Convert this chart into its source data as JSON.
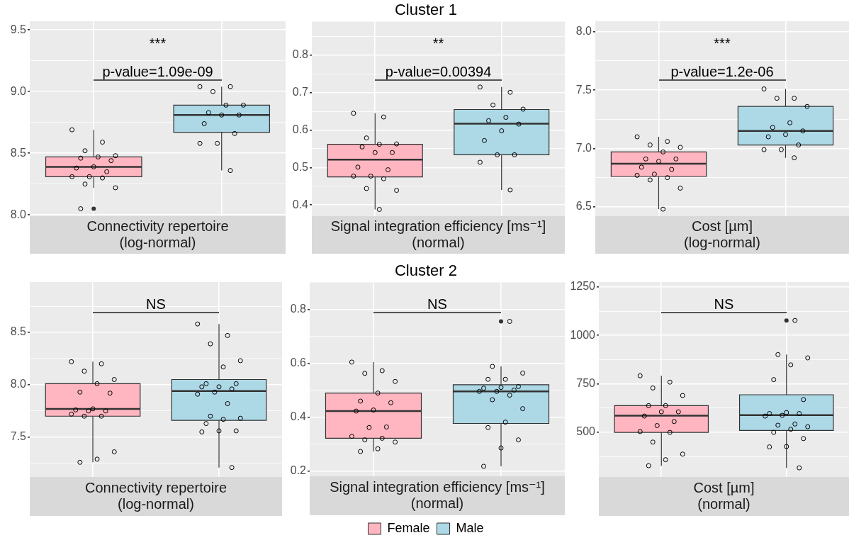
{
  "chart_data": [
    {
      "type": "box",
      "categories": [
        null,
        null
      ],
      "tick_labels": "y",
      "xlabel": "Connectivity repertoire\n(log-normal)",
      "ylim": [
        7.99,
        9.57
      ],
      "yticks": [
        {
          "value": 8,
          "label": "8.0"
        },
        {
          "value": 8.25,
          "label": null
        },
        8.5,
        {
          "value": 8.75,
          "label": null
        },
        {
          "value": 9,
          "label": "9.0"
        },
        {
          "value": 9.25,
          "label": null
        },
        9.5
      ],
      "grid": true,
      "marker": "circle",
      "annotations": [
        "***",
        "p-value=1.09e-09"
      ],
      "series": [
        {
          "color": "#ffb6c1",
          "boxes": [
            {
              "low": 8.22,
              "q1": 8.31,
              "median": 8.39,
              "q3": 8.47,
              "high": 8.69,
              "outliers": [
                8.69,
                8.59,
                8.52,
                8.48,
                8.47,
                8.46,
                8.44,
                8.39,
                8.38,
                8.35,
                8.31,
                8.31,
                8.3,
                8.25,
                8.22,
                8.05,
                8.05
              ]
            },
            null
          ]
        },
        {
          "color": "#add8e6",
          "boxes": [
            null,
            {
              "low": 8.36,
              "q1": 8.67,
              "median": 8.81,
              "q3": 8.89,
              "high": 9.04,
              "outliers": [
                9.04,
                9.04,
                9.0,
                8.89,
                8.89,
                8.83,
                8.81,
                8.81,
                8.74,
                8.66,
                8.58,
                8.58,
                8.36
              ]
            }
          ]
        }
      ]
    },
    {
      "type": "box",
      "title": "Cluster 1",
      "categories": [
        null,
        null
      ],
      "tick_labels": "y",
      "xlabel": "Signal integration efficiency [ms⁻¹]\n(normal)",
      "ylim": [
        0.37,
        0.89
      ],
      "yticks": [
        0.4,
        {
          "value": 0.45,
          "label": null
        },
        0.5,
        {
          "value": 0.55,
          "label": null
        },
        0.6,
        {
          "value": 0.65,
          "label": null
        },
        0.7,
        {
          "value": 0.75,
          "label": null
        },
        0.8,
        {
          "value": 0.85,
          "label": null
        }
      ],
      "grid": true,
      "marker": "circle",
      "annotations": [
        "**",
        "p-value=0.00394"
      ],
      "series": [
        {
          "color": "#ffb6c1",
          "boxes": [
            {
              "low": 0.388,
              "q1": 0.475,
              "median": 0.521,
              "q3": 0.562,
              "high": 0.645,
              "outliers": [
                0.645,
                0.635,
                0.579,
                0.563,
                0.562,
                0.555,
                0.54,
                0.54,
                0.501,
                0.494,
                0.477,
                0.477,
                0.47,
                0.444,
                0.439,
                0.388
              ]
            },
            null
          ]
        },
        {
          "color": "#add8e6",
          "boxes": [
            null,
            {
              "low": 0.44,
              "q1": 0.534,
              "median": 0.617,
              "q3": 0.655,
              "high": 0.715,
              "outliers": [
                0.715,
                0.701,
                0.667,
                0.656,
                0.634,
                0.625,
                0.616,
                0.598,
                0.572,
                0.534,
                0.534,
                0.514,
                0.44
              ]
            }
          ]
        }
      ]
    },
    {
      "type": "box",
      "categories": [
        null,
        null
      ],
      "tick_labels": "y",
      "xlabel": "Cost [µm]\n(log-normal)",
      "ylim": [
        6.42,
        8.09
      ],
      "yticks": [
        6.5,
        {
          "value": 6.75,
          "label": null
        },
        {
          "value": 7,
          "label": "7.0"
        },
        {
          "value": 7.25,
          "label": null
        },
        7.5,
        {
          "value": 7.75,
          "label": null
        },
        {
          "value": 8,
          "label": "8.0"
        }
      ],
      "grid": true,
      "marker": "circle",
      "annotations": [
        "***",
        "p-value=1.2e-06"
      ],
      "series": [
        {
          "color": "#ffb6c1",
          "boxes": [
            {
              "low": 6.48,
              "q1": 6.76,
              "median": 6.87,
              "q3": 6.97,
              "high": 7.1,
              "outliers": [
                7.1,
                7.06,
                7.03,
                7.01,
                6.97,
                6.91,
                6.91,
                6.89,
                6.84,
                6.82,
                6.78,
                6.77,
                6.75,
                6.73,
                6.66,
                6.48
              ]
            },
            null
          ]
        },
        {
          "color": "#add8e6",
          "boxes": [
            null,
            {
              "low": 6.92,
              "q1": 7.03,
              "median": 7.15,
              "q3": 7.36,
              "high": 7.51,
              "outliers": [
                7.51,
                7.43,
                7.43,
                7.36,
                7.22,
                7.18,
                7.15,
                7.12,
                7.1,
                7.03,
                6.99,
                6.99,
                6.92
              ]
            }
          ]
        }
      ]
    },
    {
      "type": "box",
      "categories": [
        null,
        null
      ],
      "tick_labels": "y",
      "xlabel": "Connectivity repertoire\n(log-normal)",
      "ylim": [
        7.12,
        8.98
      ],
      "yticks": [
        {
          "value": 7.25,
          "label": null
        },
        7.5,
        {
          "value": 7.75,
          "label": null
        },
        {
          "value": 8,
          "label": "8.0"
        },
        {
          "value": 8.25,
          "label": null
        },
        8.5,
        {
          "value": 8.75,
          "label": null
        }
      ],
      "grid": true,
      "marker": "circle",
      "annotations": [
        "NS"
      ],
      "series": [
        {
          "color": "#ffb6c1",
          "boxes": [
            {
              "low": 7.26,
              "q1": 7.7,
              "median": 7.77,
              "q3": 8.01,
              "high": 8.22,
              "outliers": [
                8.22,
                8.2,
                8.13,
                8.05,
                8.01,
                7.93,
                7.92,
                7.77,
                7.76,
                7.75,
                7.75,
                7.72,
                7.7,
                7.7,
                7.36,
                7.29,
                7.26
              ]
            },
            null
          ]
        },
        {
          "color": "#add8e6",
          "boxes": [
            null,
            {
              "low": 7.21,
              "q1": 7.66,
              "median": 7.94,
              "q3": 8.05,
              "high": 8.58,
              "outliers": [
                8.58,
                8.47,
                8.39,
                8.23,
                8.17,
                8.01,
                8.01,
                7.98,
                7.98,
                7.96,
                7.93,
                7.91,
                7.82,
                7.7,
                7.68,
                7.67,
                7.63,
                7.56,
                7.56,
                7.55,
                7.21
              ]
            }
          ]
        }
      ]
    },
    {
      "type": "box",
      "title": "Cluster 2",
      "categories": [
        null,
        null
      ],
      "tick_labels": "y",
      "xlabel": "Signal integration efficiency [ms⁻¹]\n(normal)",
      "ylim": [
        0.18,
        0.9
      ],
      "yticks": [
        0.2,
        {
          "value": 0.3,
          "label": null
        },
        0.4,
        {
          "value": 0.5,
          "label": null
        },
        0.6,
        {
          "value": 0.7,
          "label": null
        },
        0.8
      ],
      "grid": true,
      "marker": "circle",
      "legend": "bottom",
      "annotations": [
        "NS"
      ],
      "series": [
        {
          "name": "Female",
          "color": "#ffb6c1",
          "boxes": [
            {
              "low": 0.272,
              "q1": 0.321,
              "median": 0.422,
              "q3": 0.489,
              "high": 0.604,
              "outliers": [
                0.604,
                0.572,
                0.562,
                0.532,
                0.489,
                0.459,
                0.453,
                0.426,
                0.422,
                0.363,
                0.361,
                0.328,
                0.321,
                0.315,
                0.307,
                0.282,
                0.272
              ]
            },
            null
          ]
        },
        {
          "name": "Male",
          "color": "#add8e6",
          "boxes": [
            null,
            {
              "low": 0.217,
              "q1": 0.376,
              "median": 0.495,
              "q3": 0.52,
              "high": 0.588,
              "outliers": [
                0.755,
                0.755,
                0.588,
                0.563,
                0.54,
                0.54,
                0.513,
                0.51,
                0.507,
                0.5,
                0.495,
                0.495,
                0.481,
                0.464,
                0.431,
                0.381,
                0.361,
                0.315,
                0.285,
                0.217
              ]
            }
          ]
        }
      ]
    },
    {
      "type": "box",
      "categories": [
        null,
        null
      ],
      "tick_labels": "y",
      "xlabel": "Cost [µm]\n(normal)",
      "ylim": [
        270,
        1275
      ],
      "yticks": [
        {
          "value": 375,
          "label": null
        },
        500,
        {
          "value": 625,
          "label": null
        },
        750,
        {
          "value": 875,
          "label": null
        },
        1000,
        {
          "value": 1125,
          "label": null
        },
        1250
      ],
      "grid": true,
      "marker": "circle",
      "annotations": [
        "NS"
      ],
      "series": [
        {
          "color": "#ffb6c1",
          "boxes": [
            {
              "low": 328,
              "q1": 500,
              "median": 586,
              "q3": 638,
              "high": 792,
              "outliers": [
                792,
                759,
                729,
                690,
                638,
                638,
                606,
                606,
                584,
                556,
                535,
                504,
                500,
                450,
                388,
                359,
                328
              ]
            },
            null
          ]
        },
        {
          "color": "#add8e6",
          "boxes": [
            null,
            {
              "low": 317,
              "q1": 510,
              "median": 589,
              "q3": 694,
              "high": 901,
              "outliers": [
                1077,
                1077,
                901,
                884,
                848,
                772,
                669,
                602,
                597,
                597,
                588,
                584,
                543,
                537,
                529,
                516,
                500,
                468,
                427,
                425,
                317
              ]
            }
          ]
        }
      ]
    }
  ]
}
